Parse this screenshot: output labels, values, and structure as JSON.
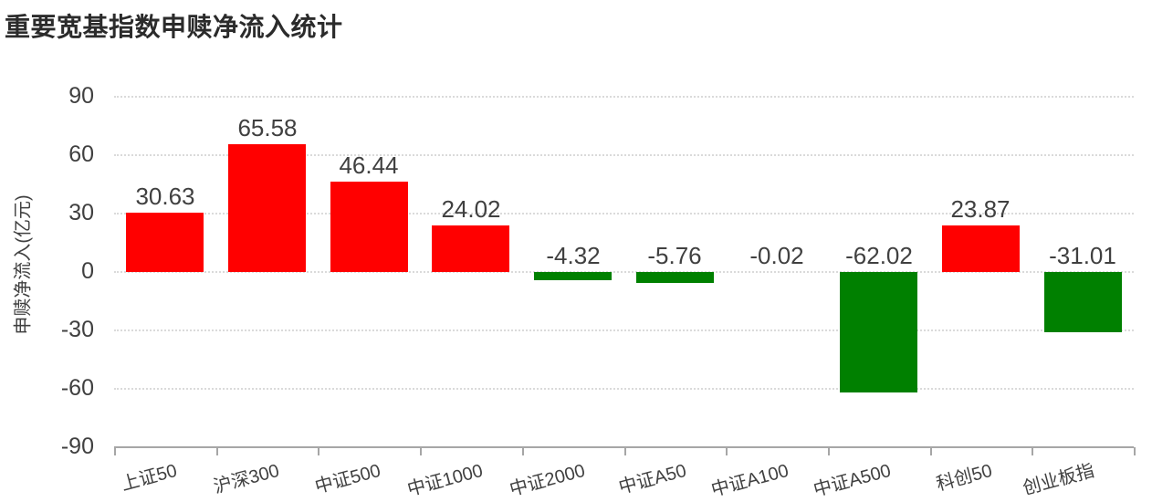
{
  "title": "重要宽基指数申赎净流入统计",
  "chart_data": {
    "type": "bar",
    "title": "重要宽基指数申赎净流入统计",
    "categories": [
      "上证50",
      "沪深300",
      "中证500",
      "中证1000",
      "中证2000",
      "中证A50",
      "中证A100",
      "中证A500",
      "科创50",
      "创业板指"
    ],
    "values": [
      30.63,
      65.58,
      46.44,
      24.02,
      -4.32,
      -5.76,
      -0.02,
      -62.02,
      23.87,
      -31.01
    ],
    "value_labels": [
      "30.63",
      "65.58",
      "46.44",
      "24.02",
      "-4.32",
      "-5.76",
      "-0.02",
      "-62.02",
      "23.87",
      "-31.01"
    ],
    "xlabel": "",
    "ylabel": "申赎净流入(亿元)",
    "ylim": [
      -90,
      90
    ],
    "yticks": [
      90,
      60,
      30,
      0,
      -30,
      -60,
      -90
    ],
    "grid": "horizontal-dotted",
    "legend": "none",
    "colors": {
      "positive_bar": "#ff0000",
      "negative_bar": "#008000",
      "label_text": "#404040",
      "title_text": "#2b2b2b",
      "gridline": "#dadada",
      "axis_line": "#a6a6a6"
    }
  }
}
